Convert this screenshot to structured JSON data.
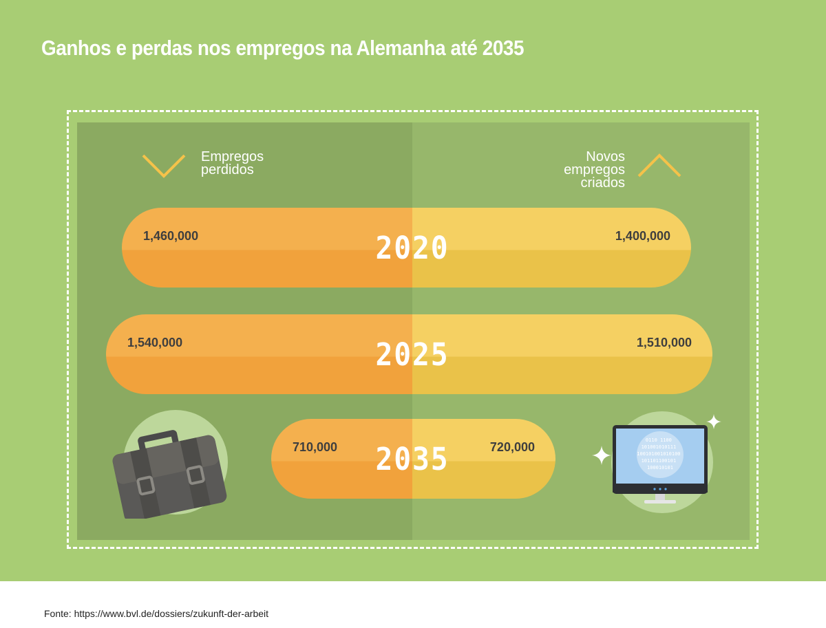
{
  "title": "Ganhos e perdas nos empregos na Alemanha até 2035",
  "legend": {
    "lost_line1": "Empregos",
    "lost_line2": "perdidos",
    "new_line1": "Novos",
    "new_line2": "empregos",
    "new_line3": "criados"
  },
  "chart_data": {
    "type": "bar",
    "categories": [
      "2020",
      "2025",
      "2035"
    ],
    "series": [
      {
        "name": "Empregos perdidos",
        "values": [
          1460000,
          1540000,
          710000
        ]
      },
      {
        "name": "Novos empregos criados",
        "values": [
          1400000,
          1510000,
          720000
        ]
      }
    ],
    "value_labels": {
      "lost": [
        "1,460,000",
        "1,540,000",
        "710,000"
      ],
      "new": [
        "1,400,000",
        "1,510,000",
        "720,000"
      ]
    },
    "title": "Ganhos e perdas nos empregos na Alemanha até 2035",
    "xlabel": "",
    "ylabel": ""
  },
  "binary_text": [
    "0110 1100",
    "101001010111",
    "100101001010100",
    "101101100101",
    "100010101"
  ],
  "source": "Fonte:  https://www.bvl.de/dossiers/zukunft-der-arbeit",
  "colors": {
    "background": "#a8cd74",
    "panel_left": "#8baa61",
    "panel_right": "#97b76b",
    "lost": "#f4b04e",
    "new": "#f5d062",
    "chevron": "#f5c24a"
  },
  "icons": {
    "lost": "briefcase-icon",
    "new": "computer-monitor-icon"
  }
}
